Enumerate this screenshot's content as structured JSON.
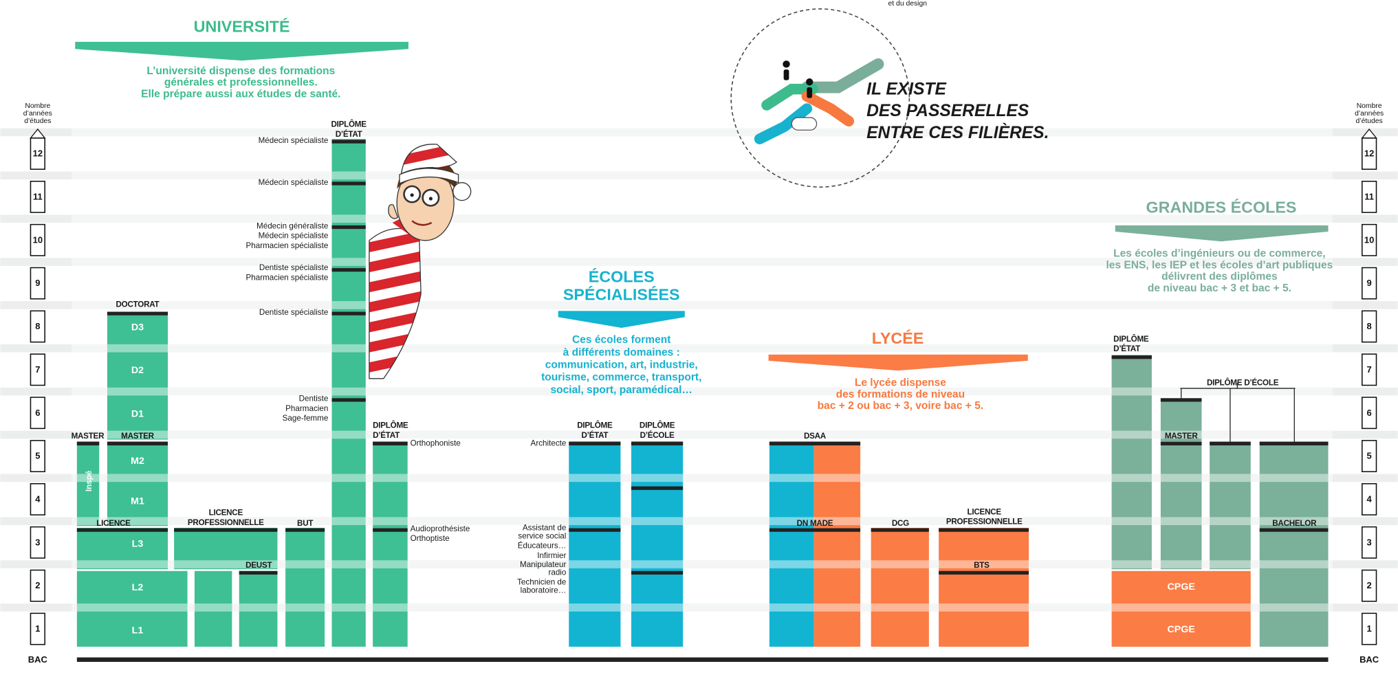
{
  "top_note": "et du design",
  "universite": {
    "title": "UNIVERSITÉ",
    "description": [
      "L’université dispense des formations",
      "générales et professionnelles.",
      "Elle prépare aussi aux études de santé."
    ]
  },
  "ecoles_specialisees": {
    "title": [
      "ÉCOLES",
      "SPÉCIALISÉES"
    ],
    "description": [
      "Ces écoles forment",
      "à différents domaines :",
      "communication, art, industrie,",
      "tourisme, commerce, transport,",
      "social, sport, paramédical…"
    ]
  },
  "lycee": {
    "title": "LYCÉE",
    "description": [
      "Le lycée dispense",
      "des formations de niveau",
      "bac + 2 ou bac + 3, voire bac + 5."
    ]
  },
  "grandes_ecoles": {
    "title": "GRANDES ÉCOLES",
    "description": [
      "Les écoles d’ingénieurs ou de commerce,",
      "les ENS, les IEP et les écoles d’art publiques",
      "délivrent des diplômes",
      "de niveau bac + 3 et bac + 5."
    ]
  },
  "passerelles": [
    "IL EXISTE",
    "DES PASSERELLES",
    "ENTRE CES FILIÈRES."
  ],
  "scale": {
    "label": [
      "Nombre",
      "d’années",
      "d’études"
    ],
    "base": "BAC",
    "years": [
      "1",
      "2",
      "3",
      "4",
      "5",
      "6",
      "7",
      "8",
      "9",
      "10",
      "11",
      "12"
    ]
  },
  "diplomas": [
    [
      "DOCTORAT"
    ],
    [
      "MASTER"
    ],
    [
      "MASTER"
    ],
    [
      "LICENCE"
    ],
    [
      "LICENCE",
      "PROFESSIONNELLE"
    ],
    [
      "DEUST"
    ],
    [
      "BUT"
    ],
    [
      "DIPLÔME",
      "D’ÉTAT"
    ],
    [
      "DIPLÔME",
      "D’ÉTAT"
    ],
    [
      "DIPLÔME",
      "D’ÉTAT"
    ],
    [
      "DIPLÔME",
      "D’ÉCOLE"
    ],
    [
      "DSAA"
    ],
    [
      "DN MADE"
    ],
    [
      "DCG"
    ],
    [
      "LICENCE",
      "PROFESSIONNELLE"
    ],
    [
      "BTS"
    ],
    [
      "DIPLÔME",
      "D’ÉTAT"
    ],
    [
      "DIPLÔME D’ÉCOLE"
    ],
    [
      "MASTER"
    ],
    [
      "BACHELOR"
    ]
  ],
  "bar_texts": [
    "D3",
    "D2",
    "D1",
    "M2",
    "M1",
    "L3",
    "L2",
    "L1",
    "Inspé",
    "CPGE",
    "CPGE"
  ],
  "professions": [
    [
      "Médecin spécialiste"
    ],
    [
      "Médecin spécialiste"
    ],
    [
      "Médecin généraliste",
      "Médecin spécialiste",
      "Pharmacien spécialiste"
    ],
    [
      "Dentiste spécialiste",
      "Pharmacien spécialiste"
    ],
    [
      "Dentiste spécialiste"
    ],
    [
      "Dentiste",
      "Pharmacien",
      "Sage-femme"
    ],
    [
      "Orthophoniste"
    ],
    [
      "Audioprothésiste",
      "Orthoptiste"
    ],
    [
      "Architecte"
    ],
    [
      "Assistant de",
      "service social"
    ],
    [
      "Éducateurs…"
    ],
    [
      "Infirmier"
    ],
    [
      "Manipulateur",
      "radio"
    ],
    [
      "Technicien de",
      "laboratoire…"
    ]
  ]
}
